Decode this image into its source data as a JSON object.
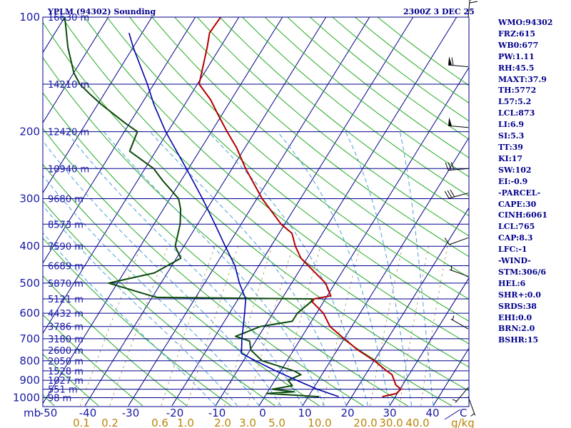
{
  "header": {
    "station_title": "YPLM (94302) Sounding",
    "valid_time": "2300Z  3 DEC 25"
  },
  "indices": [
    "WMO:94302",
    "FRZ:615",
    "WB0:677",
    "PW:1.11",
    "RH:45.5",
    "MAXT:37.9",
    "TH:5772",
    "L57:5.2",
    "LCL:873",
    "LI:6.9",
    "SI:5.3",
    "TT:39",
    "KI:17",
    "SW:102",
    "EI:-0.9",
    "-PARCEL-",
    "CAPE:30",
    "CINH:6061",
    "LCL:765",
    "CAP:8.3",
    "LFC:-1",
    "-WIND-",
    "STM:306/6",
    "HEL:6",
    "SHR+:0.0",
    "SRDS:38",
    "EHI:0.0",
    "BRN:2.0",
    "BSHR:15"
  ],
  "colors": {
    "isobar": "#00008b",
    "isotherm": "#00008b",
    "dry_adiabat": "#22aa22",
    "moist_adiabat": "#4a9fd8",
    "mixing_ratio": "#b8a270",
    "temperature": "#b30000",
    "dewpoint": "#0a4a0a",
    "parcel": "#0000aa",
    "wind_barb": "#000000",
    "axis_text": "#1a1aa6",
    "mixing_text": "#b8860b"
  },
  "chart_data": {
    "type": "line",
    "diagram": "skew-T log-P",
    "title": "YPLM (94302) Sounding",
    "xlabel": "C",
    "ylabel": "mb",
    "x_ticks": [
      "-50",
      "-40",
      "-30",
      "-20",
      "-10",
      "0",
      "10",
      "20",
      "30",
      "40"
    ],
    "x_unit_label": "C",
    "xlim": [
      -50,
      47
    ],
    "y_ticks": [
      100,
      200,
      300,
      400,
      500,
      600,
      700,
      800,
      900,
      1000
    ],
    "ylim": [
      1030,
      100
    ],
    "y_scale": "log",
    "y_unit_label": "mb",
    "height_labels": [
      {
        "p": 100,
        "text": "16630 m"
      },
      {
        "p": 150,
        "text": "14210 m"
      },
      {
        "p": 200,
        "text": "12420 m"
      },
      {
        "p": 250,
        "text": "10940 m"
      },
      {
        "p": 300,
        "text": "9680 m"
      },
      {
        "p": 350,
        "text": "8573 m"
      },
      {
        "p": 400,
        "text": "7590 m"
      },
      {
        "p": 450,
        "text": "6689 m"
      },
      {
        "p": 500,
        "text": "5870 m"
      },
      {
        "p": 550,
        "text": "5121 m"
      },
      {
        "p": 600,
        "text": "4432 m"
      },
      {
        "p": 650,
        "text": "3786 m"
      },
      {
        "p": 700,
        "text": "3180 m"
      },
      {
        "p": 750,
        "text": "2600 m"
      },
      {
        "p": 800,
        "text": "2050 m"
      },
      {
        "p": 850,
        "text": "1528 m"
      },
      {
        "p": 900,
        "text": "1027 m"
      },
      {
        "p": 950,
        "text": "551 m"
      },
      {
        "p": 1000,
        "text": "98 m"
      }
    ],
    "mixing_ratio_labels": [
      {
        "w": 0.1,
        "text": "0.1"
      },
      {
        "w": 0.2,
        "text": "0.2"
      },
      {
        "w": 0.6,
        "text": "0.6"
      },
      {
        "w": 1.0,
        "text": "1.0"
      },
      {
        "w": 2.0,
        "text": "2.0"
      },
      {
        "w": 3.0,
        "text": "3.0"
      },
      {
        "w": 5.0,
        "text": "5.0"
      },
      {
        "w": 10.0,
        "text": "10.0"
      },
      {
        "w": 20.0,
        "text": "20.0"
      },
      {
        "w": 30.0,
        "text": "30.0"
      },
      {
        "w": 40.0,
        "text": "40.0"
      }
    ],
    "mixing_unit_label": "g/kg",
    "series": [
      {
        "key": "temperature",
        "points": [
          [
            994,
            27.0
          ],
          [
            975,
            29.8
          ],
          [
            950,
            30.2
          ],
          [
            925,
            28.4
          ],
          [
            900,
            27.4
          ],
          [
            870,
            26.1
          ],
          [
            850,
            24.3
          ],
          [
            800,
            20.1
          ],
          [
            750,
            14.8
          ],
          [
            700,
            10.0
          ],
          [
            650,
            5.0
          ],
          [
            600,
            1.6
          ],
          [
            560,
            -2.6
          ],
          [
            550,
            -2.6
          ],
          [
            540,
            0.8
          ],
          [
            500,
            -2.2
          ],
          [
            470,
            -6.0
          ],
          [
            430,
            -11.4
          ],
          [
            400,
            -14.4
          ],
          [
            370,
            -17.0
          ],
          [
            350,
            -20.8
          ],
          [
            300,
            -28.8
          ],
          [
            250,
            -36.9
          ],
          [
            220,
            -42.0
          ],
          [
            200,
            -46.4
          ],
          [
            180,
            -51.0
          ],
          [
            165,
            -54.7
          ],
          [
            150,
            -59.6
          ],
          [
            120,
            -63.0
          ],
          [
            110,
            -64.5
          ],
          [
            100,
            -64.2
          ]
        ]
      },
      {
        "key": "dewpoint",
        "points": [
          [
            994,
            12.5
          ],
          [
            975,
            0.0
          ],
          [
            965,
            6.0
          ],
          [
            950,
            0.7
          ],
          [
            930,
            4.8
          ],
          [
            900,
            3.0
          ],
          [
            870,
            5.2
          ],
          [
            850,
            3.0
          ],
          [
            800,
            -5.7
          ],
          [
            750,
            -9.8
          ],
          [
            710,
            -11.4
          ],
          [
            690,
            -15.3
          ],
          [
            650,
            -11.0
          ],
          [
            630,
            -4.4
          ],
          [
            600,
            -4.4
          ],
          [
            560,
            -2.9
          ],
          [
            550,
            -3.0
          ],
          [
            545,
            -39.0
          ],
          [
            500,
            -52.0
          ],
          [
            470,
            -43.0
          ],
          [
            430,
            -39.0
          ],
          [
            400,
            -42.0
          ],
          [
            350,
            -44.0
          ],
          [
            320,
            -46.0
          ],
          [
            300,
            -48.0
          ],
          [
            270,
            -54.0
          ],
          [
            250,
            -58.0
          ],
          [
            225,
            -66.0
          ],
          [
            200,
            -67.0
          ],
          [
            190,
            -71.0
          ],
          [
            170,
            -79.0
          ],
          [
            160,
            -83.0
          ],
          [
            150,
            -87.0
          ],
          [
            140,
            -90.0
          ],
          [
            120,
            -95.0
          ],
          [
            100,
            -100.0
          ]
        ]
      },
      {
        "key": "parcel",
        "points": [
          [
            994,
            17.0
          ],
          [
            950,
            11.0
          ],
          [
            900,
            5.0
          ],
          [
            850,
            -1.2
          ],
          [
            800,
            -7.2
          ],
          [
            765,
            -11.5
          ],
          [
            700,
            -13.5
          ],
          [
            600,
            -16.5
          ],
          [
            550,
            -18.3
          ],
          [
            500,
            -22.0
          ],
          [
            450,
            -25.5
          ],
          [
            400,
            -30.5
          ],
          [
            350,
            -36.0
          ],
          [
            300,
            -42.5
          ],
          [
            250,
            -50.5
          ],
          [
            200,
            -60.5
          ],
          [
            170,
            -67.0
          ],
          [
            150,
            -71.5
          ],
          [
            120,
            -80.0
          ],
          [
            110,
            -83.0
          ]
        ]
      }
    ],
    "winds": [
      {
        "p": 100,
        "dir": 5,
        "speed_kt": 30
      },
      {
        "p": 135,
        "dir": 275,
        "speed_kt": 60
      },
      {
        "p": 195,
        "dir": 275,
        "speed_kt": 50
      },
      {
        "p": 250,
        "dir": 265,
        "speed_kt": 30
      },
      {
        "p": 290,
        "dir": 255,
        "speed_kt": 30
      },
      {
        "p": 380,
        "dir": 250,
        "speed_kt": 10
      },
      {
        "p": 480,
        "dir": 290,
        "speed_kt": 5
      },
      {
        "p": 660,
        "dir": 300,
        "speed_kt": 5
      },
      {
        "p": 940,
        "dir": 220,
        "speed_kt": 5
      },
      {
        "p": 994,
        "dir": 160,
        "speed_kt": 5
      }
    ],
    "grid": true,
    "legend": "none"
  }
}
